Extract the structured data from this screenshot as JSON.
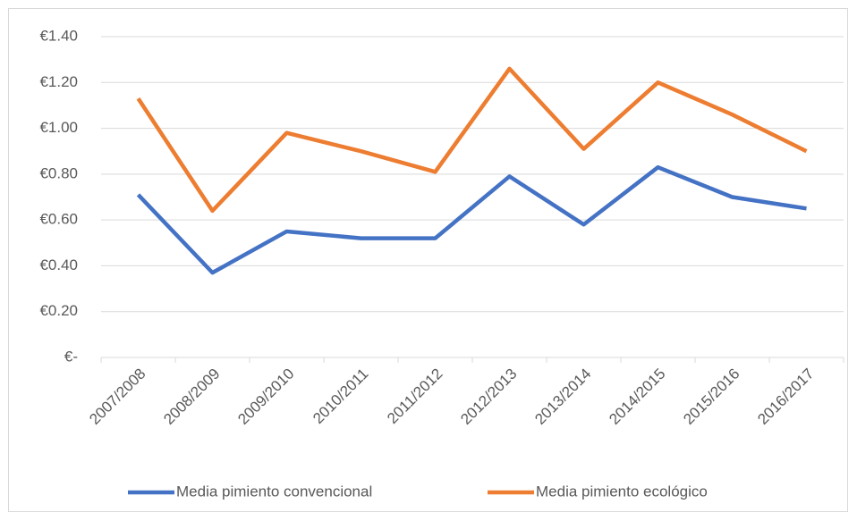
{
  "chart_data": {
    "type": "line",
    "categories": [
      "2007/2008",
      "2008/2009",
      "2009/2010",
      "2010/2011",
      "2011/2012",
      "2012/2013",
      "2013/2014",
      "2014/2015",
      "2015/2016",
      "2016/2017"
    ],
    "series": [
      {
        "name": "Media pimiento convencional",
        "color": "#4472c4",
        "values": [
          0.71,
          0.37,
          0.55,
          0.52,
          0.52,
          0.79,
          0.58,
          0.83,
          0.7,
          0.65
        ]
      },
      {
        "name": "Media pimiento ecológico",
        "color": "#ed7d31",
        "values": [
          1.13,
          0.64,
          0.98,
          0.9,
          0.81,
          1.26,
          0.91,
          1.2,
          1.06,
          0.9
        ]
      }
    ],
    "ylim": [
      0,
      1.4
    ],
    "yticks": [
      {
        "value": 0,
        "label": "€-"
      },
      {
        "value": 0.2,
        "label": "€0.20"
      },
      {
        "value": 0.4,
        "label": "€0.40"
      },
      {
        "value": 0.6,
        "label": "€0.60"
      },
      {
        "value": 0.8,
        "label": "€0.80"
      },
      {
        "value": 1.0,
        "label": "€1.00"
      },
      {
        "value": 1.2,
        "label": "€1.20"
      },
      {
        "value": 1.4,
        "label": "€1.40"
      }
    ],
    "grid": true,
    "legend": "bottom"
  }
}
